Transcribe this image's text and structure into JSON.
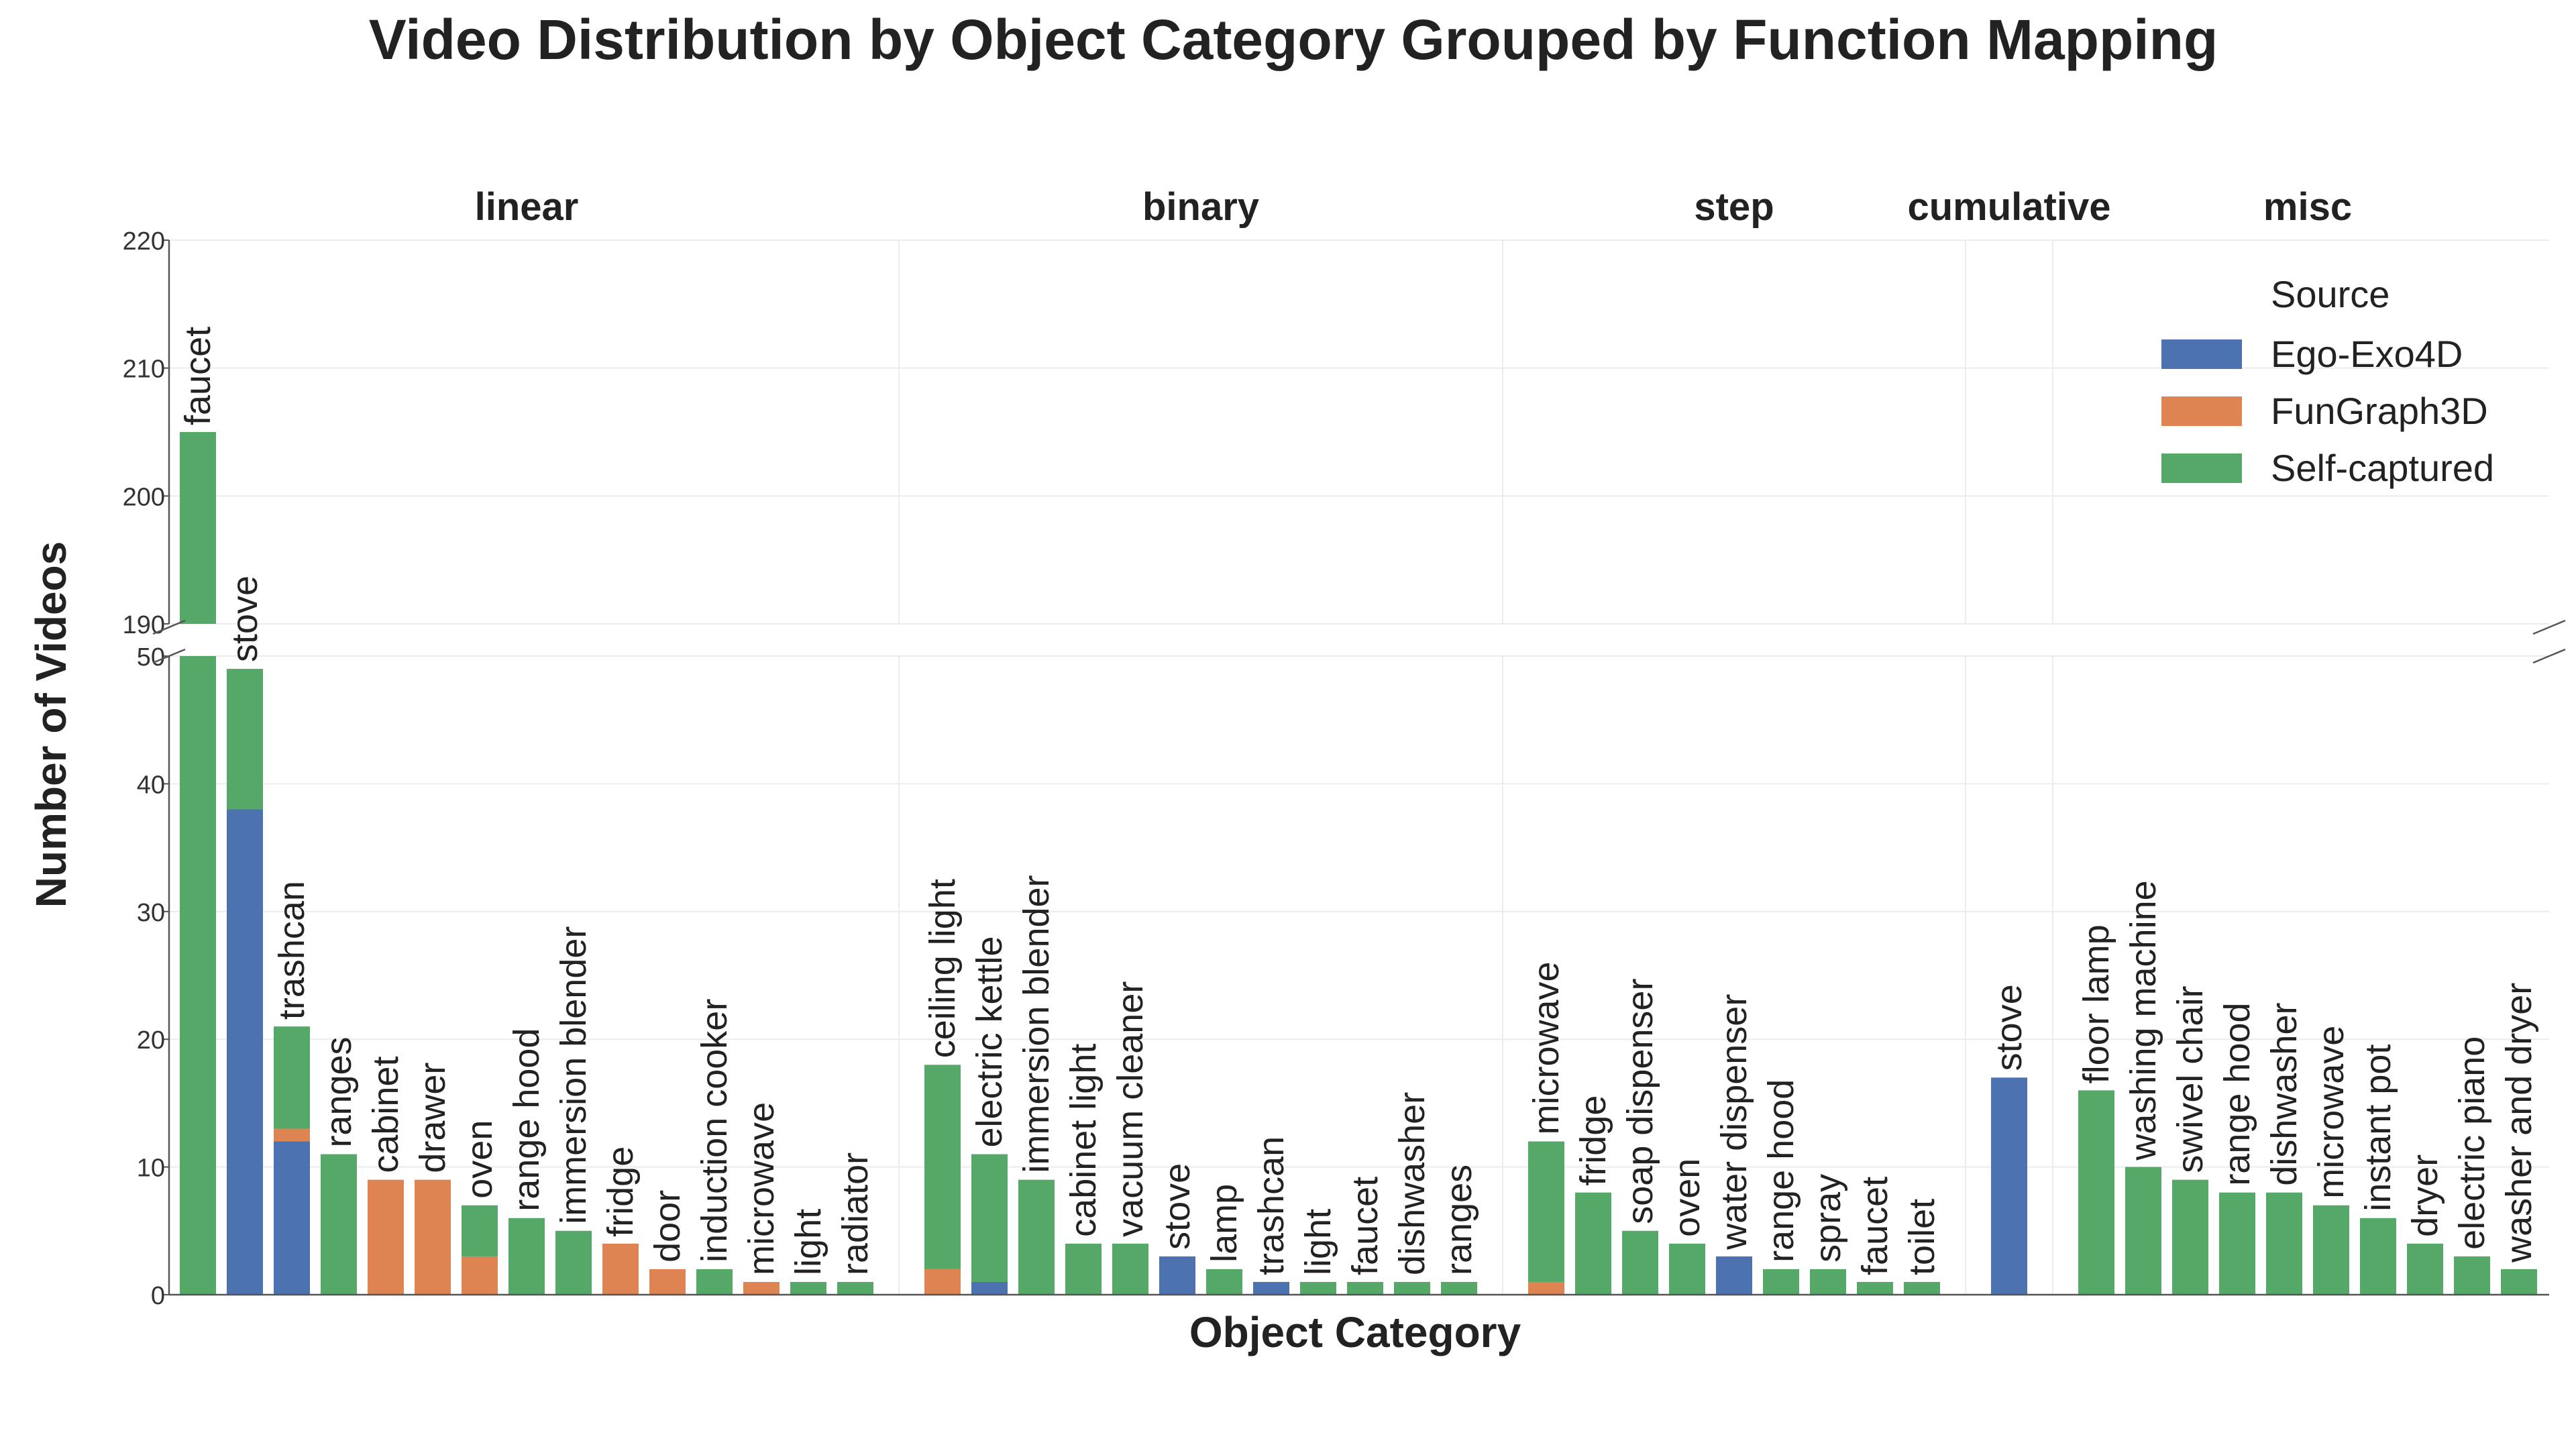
{
  "chart_data": {
    "type": "bar",
    "stacked": true,
    "title": "Video Distribution by Object Category Grouped by Function Mapping",
    "xlabel": "Object Category",
    "ylabel": "Number of Videos",
    "broken_y_axis": {
      "lower_range": [
        0,
        50
      ],
      "upper_range": [
        190,
        220
      ],
      "lower_ticks": [
        0,
        10,
        20,
        30,
        40,
        50
      ],
      "upper_ticks": [
        190,
        200,
        210,
        220
      ]
    },
    "grid": true,
    "legend": {
      "title": "Source",
      "placement": "top-right",
      "entries": [
        "Ego-Exo4D",
        "FunGraph3D",
        "Self-captured"
      ]
    },
    "series_colors": {
      "Ego-Exo4D": "#4c72b0",
      "FunGraph3D": "#dd8452",
      "Self-captured": "#55a868"
    },
    "groups": [
      {
        "name": "linear",
        "categories": [
          {
            "label": "faucet",
            "ego": 0,
            "fun": 0,
            "self": 205
          },
          {
            "label": "stove",
            "ego": 38,
            "fun": 0,
            "self": 11
          },
          {
            "label": "trashcan",
            "ego": 12,
            "fun": 1,
            "self": 8
          },
          {
            "label": "ranges",
            "ego": 0,
            "fun": 0,
            "self": 11
          },
          {
            "label": "cabinet",
            "ego": 0,
            "fun": 9,
            "self": 0
          },
          {
            "label": "drawer",
            "ego": 0,
            "fun": 9,
            "self": 0
          },
          {
            "label": "oven",
            "ego": 0,
            "fun": 3,
            "self": 4
          },
          {
            "label": "range hood",
            "ego": 0,
            "fun": 0,
            "self": 6
          },
          {
            "label": "immersion blender",
            "ego": 0,
            "fun": 0,
            "self": 5
          },
          {
            "label": "fridge",
            "ego": 0,
            "fun": 4,
            "self": 0
          },
          {
            "label": "door",
            "ego": 0,
            "fun": 2,
            "self": 0
          },
          {
            "label": "induction cooker",
            "ego": 0,
            "fun": 0,
            "self": 2
          },
          {
            "label": "microwave",
            "ego": 0,
            "fun": 1,
            "self": 0
          },
          {
            "label": "light",
            "ego": 0,
            "fun": 0,
            "self": 1
          },
          {
            "label": "radiator",
            "ego": 0,
            "fun": 0,
            "self": 1
          }
        ]
      },
      {
        "name": "binary",
        "categories": [
          {
            "label": "ceiling light",
            "ego": 0,
            "fun": 2,
            "self": 16
          },
          {
            "label": "electric kettle",
            "ego": 1,
            "fun": 0,
            "self": 10
          },
          {
            "label": "immersion blender",
            "ego": 0,
            "fun": 0,
            "self": 9
          },
          {
            "label": "cabinet light",
            "ego": 0,
            "fun": 0,
            "self": 4
          },
          {
            "label": "vacuum cleaner",
            "ego": 0,
            "fun": 0,
            "self": 4
          },
          {
            "label": "stove",
            "ego": 3,
            "fun": 0,
            "self": 0
          },
          {
            "label": "lamp",
            "ego": 0,
            "fun": 0,
            "self": 2
          },
          {
            "label": "trashcan",
            "ego": 1,
            "fun": 0,
            "self": 0
          },
          {
            "label": "light",
            "ego": 0,
            "fun": 0,
            "self": 1
          },
          {
            "label": "faucet",
            "ego": 0,
            "fun": 0,
            "self": 1
          },
          {
            "label": "dishwasher",
            "ego": 0,
            "fun": 0,
            "self": 1
          },
          {
            "label": "ranges",
            "ego": 0,
            "fun": 0,
            "self": 1
          }
        ]
      },
      {
        "name": "step",
        "categories": [
          {
            "label": "microwave",
            "ego": 0,
            "fun": 1,
            "self": 11
          },
          {
            "label": "fridge",
            "ego": 0,
            "fun": 0,
            "self": 8
          },
          {
            "label": "soap dispenser",
            "ego": 0,
            "fun": 0,
            "self": 5
          },
          {
            "label": "oven",
            "ego": 0,
            "fun": 0,
            "self": 4
          },
          {
            "label": "water dispenser",
            "ego": 3,
            "fun": 0,
            "self": 0
          },
          {
            "label": "range hood",
            "ego": 0,
            "fun": 0,
            "self": 2
          },
          {
            "label": "spray",
            "ego": 0,
            "fun": 0,
            "self": 2
          },
          {
            "label": "faucet",
            "ego": 0,
            "fun": 0,
            "self": 1
          },
          {
            "label": "toilet",
            "ego": 0,
            "fun": 0,
            "self": 1
          }
        ]
      },
      {
        "name": "cumulative",
        "categories": [
          {
            "label": "stove",
            "ego": 17,
            "fun": 0,
            "self": 0
          }
        ]
      },
      {
        "name": "misc",
        "categories": [
          {
            "label": "floor lamp",
            "ego": 0,
            "fun": 0,
            "self": 16
          },
          {
            "label": "washing machine",
            "ego": 0,
            "fun": 0,
            "self": 10
          },
          {
            "label": "swivel chair",
            "ego": 0,
            "fun": 0,
            "self": 9
          },
          {
            "label": "range hood",
            "ego": 0,
            "fun": 0,
            "self": 8
          },
          {
            "label": "dishwasher",
            "ego": 0,
            "fun": 0,
            "self": 8
          },
          {
            "label": "microwave",
            "ego": 0,
            "fun": 0,
            "self": 7
          },
          {
            "label": "instant pot",
            "ego": 0,
            "fun": 0,
            "self": 6
          },
          {
            "label": "dryer",
            "ego": 0,
            "fun": 0,
            "self": 4
          },
          {
            "label": "electric piano",
            "ego": 0,
            "fun": 0,
            "self": 3
          },
          {
            "label": "washer and dryer",
            "ego": 0,
            "fun": 0,
            "self": 2
          }
        ]
      }
    ]
  }
}
